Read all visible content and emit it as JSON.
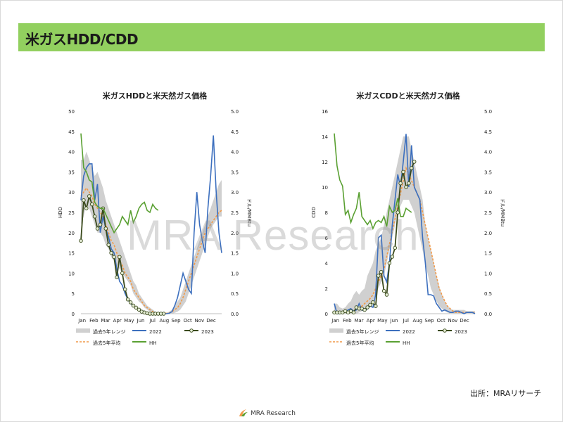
{
  "page": {
    "title": "米ガスHDD/CDD",
    "watermark": "MRA Research",
    "source": "出所：MRAリサーチ",
    "footer_brand": "MRA Research"
  },
  "colors": {
    "title_bar": "#92d05f",
    "band": "#d0d0d0",
    "y2022": "#3c6fbe",
    "y2023": "#3a4a1c",
    "avg": "#f19a4a",
    "hh": "#5aa032"
  },
  "legend_labels": {
    "band": "過去5年レンジ",
    "y2022": "2022",
    "y2023": "2023",
    "avg": "過去5年平均",
    "hh": "HH"
  },
  "chart_data": [
    {
      "type": "line",
      "title": "米ガスHDDと米天然ガス価格",
      "ylabel": "HDD",
      "y2label": "ドル/MMBtu",
      "ylim": [
        0,
        50
      ],
      "y_ticks": [
        "0",
        "5",
        "10",
        "15",
        "20",
        "25",
        "30",
        "35",
        "40",
        "45",
        "50"
      ],
      "y2lim": [
        0,
        5
      ],
      "y2_ticks": [
        "0.0",
        "0.5",
        "1.0",
        "1.5",
        "2.0",
        "2.5",
        "3.0",
        "3.5",
        "4.0",
        "4.5",
        "5.0"
      ],
      "x_ticks": [
        "Jan",
        "Feb",
        "Mar",
        "Apr",
        "May",
        "Jun",
        "Jul",
        "Aug",
        "Sep",
        "Oct",
        "Nov",
        "Dec"
      ],
      "weeks": 52,
      "band_low": [
        22,
        24,
        27,
        26,
        24,
        22,
        20,
        20,
        19,
        17,
        16,
        14,
        13,
        12,
        11,
        10,
        9,
        8,
        7,
        5,
        4,
        3,
        2.5,
        1.5,
        1,
        0.5,
        0.2,
        0,
        0,
        0,
        0,
        0,
        0,
        0,
        0.2,
        0.5,
        1,
        2,
        3,
        5,
        7,
        9,
        11,
        13,
        15,
        17,
        19,
        21,
        22,
        23,
        24,
        24
      ],
      "band_high": [
        38,
        38,
        40,
        38,
        36,
        34,
        35,
        33,
        31,
        28,
        26,
        24,
        22,
        20,
        18,
        16,
        14,
        12,
        10,
        8,
        7,
        5,
        4,
        3,
        2,
        1.5,
        1,
        0.5,
        0.2,
        0.2,
        0.2,
        0.2,
        0.5,
        1,
        2,
        3,
        4,
        6,
        8,
        10,
        12,
        14,
        16,
        18,
        20,
        22,
        24,
        26,
        28,
        30,
        32,
        33
      ],
      "series": [
        {
          "name": "過去5年平均",
          "values": [
            29,
            30,
            31,
            30,
            29,
            27,
            26,
            25,
            24,
            22,
            20,
            18,
            17,
            15,
            13,
            12,
            10,
            9,
            8,
            6,
            5,
            4,
            3,
            2,
            1.5,
            1,
            0.5,
            0.2,
            0.1,
            0.1,
            0.1,
            0.1,
            0.2,
            0.5,
            1,
            1.5,
            2.5,
            4,
            6,
            8,
            10,
            12,
            14,
            16,
            18,
            20,
            21,
            22,
            23,
            24,
            25,
            25.5
          ]
        },
        {
          "name": "2022",
          "values": [
            28,
            34,
            36,
            37,
            37,
            28,
            32,
            20,
            24,
            21,
            19,
            16,
            15,
            11,
            8,
            7,
            5,
            3.5,
            2.5,
            2,
            1.5,
            1,
            0.8,
            0.5,
            0.3,
            0.2,
            0.1,
            0,
            0,
            0,
            0,
            0,
            0.1,
            0.5,
            2,
            4,
            7,
            10,
            8,
            6,
            5,
            20,
            30,
            22,
            18,
            15,
            26,
            34,
            44,
            30,
            20,
            15
          ]
        },
        {
          "name": "2023",
          "values": [
            18,
            28,
            26,
            29,
            27,
            24,
            21,
            22,
            26,
            21,
            17,
            15,
            14,
            9,
            14,
            10,
            6,
            3.5,
            2.8,
            2,
            1.5,
            1,
            0.5,
            0.3,
            0.1,
            0,
            0,
            0,
            0,
            0,
            0
          ]
        },
        {
          "name": "HH",
          "values": [
            4.45,
            3.6,
            3.5,
            3.3,
            3.25,
            2.75,
            2.65,
            2.6,
            2.6,
            2.45,
            2.3,
            2.15,
            2.0,
            2.1,
            2.2,
            2.4,
            2.3,
            2.2,
            2.55,
            2.25,
            2.4,
            2.6,
            2.7,
            2.75,
            2.55,
            2.5,
            2.7,
            2.6,
            2.55
          ]
        }
      ]
    },
    {
      "type": "line",
      "title": "米ガスCDDと米天然ガス価格",
      "ylabel": "CDD",
      "y2label": "ドル/MMBtu",
      "ylim": [
        0,
        16
      ],
      "y_ticks": [
        "0",
        "2",
        "4",
        "6",
        "8",
        "10",
        "12",
        "14",
        "16"
      ],
      "y2lim": [
        0,
        5
      ],
      "y2_ticks": [
        "0.0",
        "0.5",
        "1.0",
        "1.5",
        "2.0",
        "2.5",
        "3.0",
        "3.5",
        "4.0",
        "4.5",
        "5.0"
      ],
      "x_ticks": [
        "Jan",
        "Feb",
        "Mar",
        "Apr",
        "May",
        "Jun",
        "Jul",
        "Aug",
        "Sep",
        "Oct",
        "Nov",
        "Dec"
      ],
      "weeks": 52,
      "band_low": [
        0,
        0,
        0,
        0,
        0,
        0,
        0,
        0,
        0,
        0.1,
        0.2,
        0.3,
        0.5,
        0.8,
        1,
        1.5,
        2,
        2.5,
        3,
        4,
        5,
        6,
        7,
        8,
        8.5,
        9,
        9,
        9,
        8.5,
        8,
        7,
        6,
        5,
        4,
        3,
        2,
        1.5,
        1,
        0.6,
        0.4,
        0.2,
        0.1,
        0,
        0,
        0,
        0,
        0,
        0,
        0,
        0,
        0,
        0
      ],
      "band_high": [
        0.8,
        0.8,
        0.5,
        0.4,
        0.5,
        0.8,
        1,
        1.5,
        1.8,
        1.5,
        1.8,
        2,
        3,
        3.5,
        4,
        5,
        5.5,
        6,
        7,
        8,
        9,
        10,
        11,
        12,
        13,
        14,
        14,
        14,
        13,
        12,
        11,
        10,
        9,
        7,
        6,
        5,
        4,
        3,
        2.2,
        1.5,
        1,
        0.6,
        0.4,
        0.3,
        0.3,
        0.3,
        0.3,
        0.3,
        0.2,
        0.2,
        0.2,
        0.2
      ],
      "series": [
        {
          "name": "過去5年平均",
          "values": [
            0.1,
            0.1,
            0.1,
            0.1,
            0.1,
            0.2,
            0.2,
            0.3,
            0.4,
            0.5,
            0.6,
            0.8,
            1,
            1.2,
            1.5,
            2,
            2.5,
            3,
            3.5,
            4.5,
            5.5,
            6.5,
            7.5,
            8.5,
            9.5,
            10.5,
            11.5,
            11,
            10.5,
            10,
            9.5,
            9,
            8,
            7,
            6,
            5,
            4,
            3,
            2,
            1.5,
            1,
            0.6,
            0.4,
            0.2,
            0.1,
            0.1,
            0.1,
            0.1,
            0.1,
            0.1,
            0.1,
            0.1
          ]
        },
        {
          "name": "2022",
          "values": [
            0.8,
            0,
            0,
            0.1,
            0.1,
            0.3,
            0.4,
            0.2,
            0.3,
            0.8,
            0.3,
            0.2,
            0.4,
            0.6,
            0.5,
            1.5,
            6,
            6.2,
            3,
            2.5,
            4,
            7,
            9,
            11,
            10,
            12,
            14.2,
            10,
            13.3,
            10,
            9.5,
            9,
            6,
            4,
            1.5,
            1.5,
            1.4,
            0.8,
            0.5,
            0.2,
            0.3,
            0.2,
            0.1,
            0.1,
            0.2,
            0.2,
            0.1,
            0,
            0.1,
            0.1,
            0.1,
            0
          ]
        },
        {
          "name": "2023",
          "values": [
            0.1,
            0.1,
            0.1,
            0.1,
            0.2,
            0.1,
            0.2,
            0.1,
            0.5,
            0.4,
            0.4,
            0.3,
            0.5,
            0.7,
            0.9,
            0.6,
            3,
            3.3,
            1.8,
            1.5,
            4,
            4.5,
            5.2,
            8,
            10.3,
            11.2,
            10,
            10.3,
            11.5,
            12
          ]
        },
        {
          "name": "HH",
          "values": [
            4.45,
            3.65,
            3.3,
            3.15,
            2.45,
            2.55,
            2.25,
            2.45,
            2.6,
            3.0,
            2.4,
            2.3,
            2.2,
            2.3,
            2.1,
            2.25,
            2.3,
            2.25,
            2.4,
            2.15,
            2.65,
            2.5,
            2.55,
            2.85,
            2.4,
            2.4,
            2.6,
            2.55,
            2.5
          ]
        }
      ]
    }
  ]
}
